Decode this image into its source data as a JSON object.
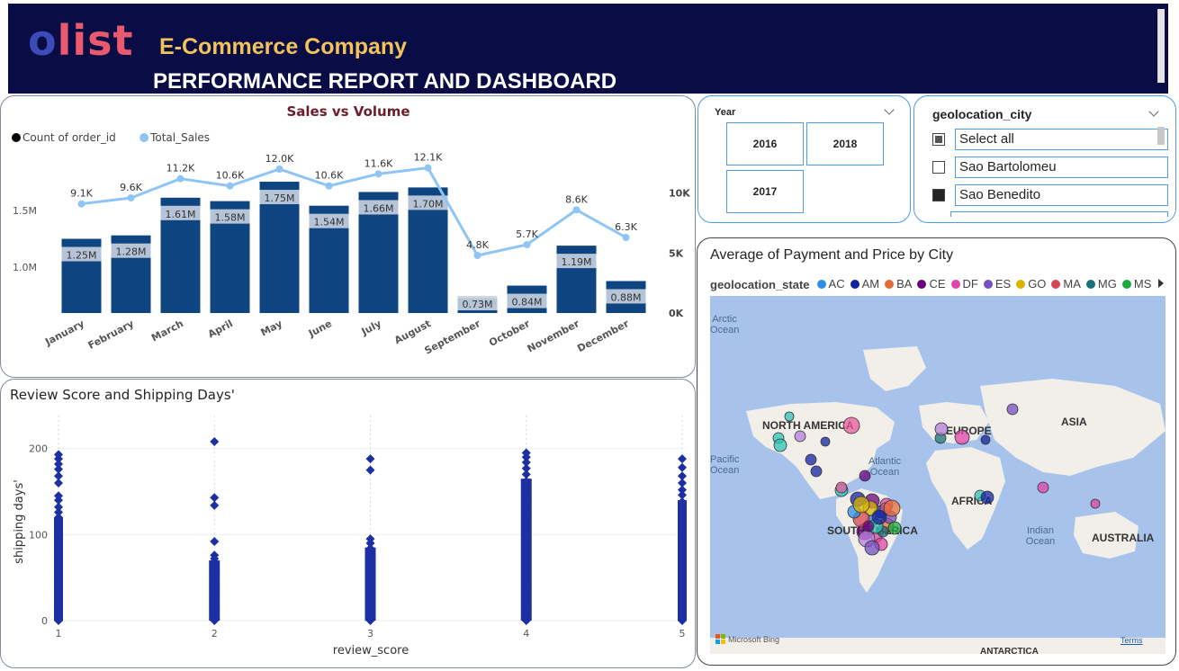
{
  "header": {
    "logo_o": "o",
    "logo_rest": "list",
    "company": "E-Commerce Company",
    "report_title": "PERFORMANCE REPORT AND DASHBOARD"
  },
  "sales_panel": {
    "title": "Sales vs Volume"
  },
  "chart_data": [
    {
      "type": "bar",
      "title": "Sales vs Volume",
      "legend": {
        "placement": "top-left",
        "entries": [
          {
            "label": "Count of order_id",
            "color": "#000000"
          },
          {
            "label": "Total_Sales",
            "color": "#8ec5f5"
          }
        ]
      },
      "categories": [
        "January",
        "February",
        "March",
        "April",
        "May",
        "June",
        "July",
        "August",
        "September",
        "October",
        "November",
        "December"
      ],
      "series": [
        {
          "name": "Total_Sales",
          "kind": "bar",
          "axis": "left",
          "color": "#0e4480",
          "values": [
            1.25,
            1.28,
            1.61,
            1.58,
            1.75,
            1.54,
            1.66,
            1.7,
            0.73,
            0.84,
            1.19,
            0.88
          ],
          "labels": [
            "1.25M",
            "1.28M",
            "1.61M",
            "1.58M",
            "1.75M",
            "1.54M",
            "1.66M",
            "1.70M",
            "0.73M",
            "0.84M",
            "1.19M",
            "0.88M"
          ]
        },
        {
          "name": "Count of order_id",
          "kind": "line",
          "axis": "right",
          "color": "#8ec5f5",
          "values": [
            9.1,
            9.6,
            11.2,
            10.6,
            12.0,
            10.6,
            11.6,
            12.1,
            4.8,
            5.7,
            8.6,
            6.3
          ],
          "labels": [
            "9.1K",
            "9.6K",
            "11.2K",
            "10.6K",
            "12.0K",
            "10.6K",
            "11.6K",
            "12.1K",
            "4.8K",
            "5.7K",
            "8.6K",
            "6.3K"
          ]
        }
      ],
      "y_left": {
        "ticks": [
          "1.0M",
          "1.5M"
        ],
        "tick_values": [
          1.0,
          1.5
        ],
        "range": [
          0.6,
          1.9
        ]
      },
      "y_right": {
        "ticks": [
          "0K",
          "5K",
          "10K"
        ],
        "tick_values": [
          0,
          5,
          10
        ],
        "range": [
          0,
          15
        ]
      },
      "grid": false
    },
    {
      "type": "scatter",
      "title": "Review Score and Shipping Days'",
      "xlabel": "review_score",
      "ylabel": "shipping days'",
      "xlim": [
        1,
        5
      ],
      "ylim": [
        0,
        230
      ],
      "x_ticks": [
        "1",
        "2",
        "3",
        "4",
        "5"
      ],
      "y_ticks": [
        "0",
        "100",
        "200"
      ],
      "color": "#1c2fa3",
      "columns": [
        {
          "x": 1,
          "dense_top": 120,
          "points": [
            193,
            188,
            182,
            176,
            168,
            160,
            145,
            140,
            132,
            126
          ]
        },
        {
          "x": 2,
          "dense_top": 70,
          "points": [
            208,
            143,
            134,
            92,
            76,
            72
          ]
        },
        {
          "x": 3,
          "dense_top": 85,
          "points": [
            188,
            175,
            95,
            90
          ]
        },
        {
          "x": 4,
          "dense_top": 165,
          "points": [
            195,
            190,
            184,
            177,
            170
          ]
        },
        {
          "x": 5,
          "dense_top": 140,
          "points": [
            188,
            178,
            168,
            160,
            152,
            146
          ]
        }
      ]
    }
  ],
  "year_slicer": {
    "title": "Year",
    "buttons": [
      "2016",
      "2018",
      "2017"
    ]
  },
  "city_slicer": {
    "title": "geolocation_city",
    "items": [
      {
        "label": "Select all",
        "state": "partial"
      },
      {
        "label": "Sao Bartolomeu",
        "state": "unchecked"
      },
      {
        "label": "Sao Benedito",
        "state": "checked"
      }
    ]
  },
  "map_panel": {
    "title": "Average of Payment and Price by City",
    "legend_title": "geolocation_state",
    "legend": [
      {
        "label": "AC",
        "color": "#2e8fe8"
      },
      {
        "label": "AM",
        "color": "#12239e"
      },
      {
        "label": "BA",
        "color": "#e66c37"
      },
      {
        "label": "CE",
        "color": "#6b007b"
      },
      {
        "label": "DF",
        "color": "#e044a7"
      },
      {
        "label": "ES",
        "color": "#744ec2"
      },
      {
        "label": "GO",
        "color": "#d9b300"
      },
      {
        "label": "MA",
        "color": "#d64550"
      },
      {
        "label": "MG",
        "color": "#197278"
      },
      {
        "label": "MS",
        "color": "#1aab40"
      }
    ],
    "continents": [
      "NORTH AMERICA",
      "EUROPE",
      "ASIA",
      "AFRICA",
      "SOUTH AMERICA",
      "AUSTRALIA",
      "ANTARCTICA"
    ],
    "oceans": [
      "Arctic Ocean",
      "Atlantic Ocean",
      "Pacific Ocean",
      "Indian Ocean"
    ],
    "attribution": "Microsoft Bing",
    "terms": "Terms"
  }
}
